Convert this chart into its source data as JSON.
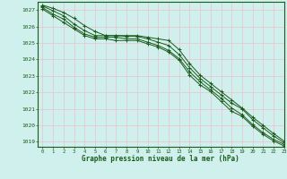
{
  "title": "",
  "xlabel": "Graphe pression niveau de la mer (hPa)",
  "background_color": "#cff0ec",
  "grid_color": "#e8c8d0",
  "line_color": "#1a5c1a",
  "xlim": [
    -0.5,
    23
  ],
  "ylim": [
    1018.7,
    1027.5
  ],
  "yticks": [
    1019,
    1020,
    1021,
    1022,
    1023,
    1024,
    1025,
    1026,
    1027
  ],
  "xticks": [
    0,
    1,
    2,
    3,
    4,
    5,
    6,
    7,
    8,
    9,
    10,
    11,
    12,
    13,
    14,
    15,
    16,
    17,
    18,
    19,
    20,
    21,
    22,
    23
  ],
  "lines": [
    [
      1027.3,
      1027.1,
      1026.85,
      1026.5,
      1026.05,
      1025.7,
      1025.45,
      1025.45,
      1025.45,
      1025.45,
      1025.35,
      1025.25,
      1025.15,
      1024.6,
      1023.75,
      1023.05,
      1022.55,
      1022.05,
      1021.55,
      1021.05,
      1020.5,
      1020.0,
      1019.5,
      1019.05
    ],
    [
      1027.25,
      1026.95,
      1026.65,
      1026.15,
      1025.75,
      1025.45,
      1025.45,
      1025.45,
      1025.4,
      1025.4,
      1025.25,
      1025.05,
      1024.85,
      1024.3,
      1023.5,
      1022.85,
      1022.35,
      1021.85,
      1021.35,
      1021.0,
      1020.35,
      1019.85,
      1019.35,
      1018.95
    ],
    [
      1027.15,
      1026.75,
      1026.45,
      1025.95,
      1025.55,
      1025.35,
      1025.35,
      1025.35,
      1025.25,
      1025.25,
      1025.05,
      1024.85,
      1024.55,
      1024.05,
      1023.25,
      1022.65,
      1022.15,
      1021.65,
      1021.05,
      1020.65,
      1020.05,
      1019.55,
      1019.15,
      1018.85
    ],
    [
      1027.05,
      1026.65,
      1026.25,
      1025.85,
      1025.45,
      1025.25,
      1025.25,
      1025.15,
      1025.15,
      1025.15,
      1024.95,
      1024.75,
      1024.45,
      1023.95,
      1023.05,
      1022.45,
      1022.05,
      1021.45,
      1020.85,
      1020.55,
      1019.95,
      1019.45,
      1019.05,
      1018.75
    ]
  ]
}
